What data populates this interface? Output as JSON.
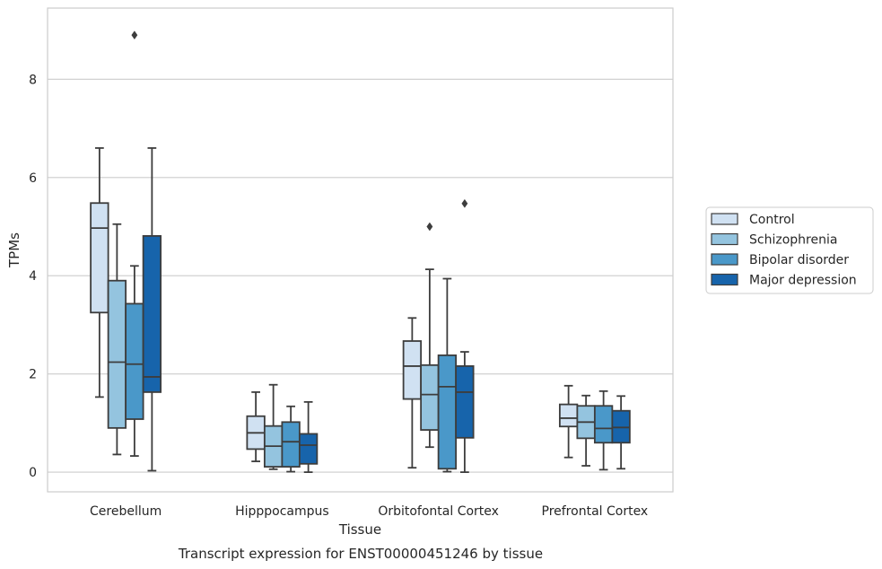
{
  "chart_data": {
    "type": "box",
    "caption": "Transcript expression for ENST00000451246 by tissue",
    "xlabel": "Tissue",
    "ylabel": "TPMs",
    "ylim": [
      -0.4,
      9.45
    ],
    "yticks": [
      0,
      2,
      4,
      6,
      8
    ],
    "grid": "horizontal",
    "legend_placement": "right",
    "categories": [
      "Cerebellum",
      "Hipppocampus",
      "Orbitofontal Cortex",
      "Prefrontal Cortex"
    ],
    "series": [
      {
        "name": "Control",
        "color": "#d0e1f2",
        "boxes": [
          {
            "whislo": 1.53,
            "q1": 3.25,
            "med": 4.97,
            "q3": 5.48,
            "whishi": 6.6,
            "fliers": []
          },
          {
            "whislo": 0.22,
            "q1": 0.47,
            "med": 0.8,
            "q3": 1.14,
            "whishi": 1.63,
            "fliers": []
          },
          {
            "whislo": 0.09,
            "q1": 1.49,
            "med": 2.16,
            "q3": 2.67,
            "whishi": 3.14,
            "fliers": []
          },
          {
            "whislo": 0.3,
            "q1": 0.93,
            "med": 1.1,
            "q3": 1.38,
            "whishi": 1.76,
            "fliers": []
          }
        ]
      },
      {
        "name": "Schizophrenia",
        "color": "#94c4df",
        "boxes": [
          {
            "whislo": 0.36,
            "q1": 0.9,
            "med": 2.24,
            "q3": 3.9,
            "whishi": 5.05,
            "fliers": []
          },
          {
            "whislo": 0.06,
            "q1": 0.11,
            "med": 0.53,
            "q3": 0.94,
            "whishi": 1.78,
            "fliers": []
          },
          {
            "whislo": 0.51,
            "q1": 0.86,
            "med": 1.58,
            "q3": 2.18,
            "whishi": 4.13,
            "fliers": [
              5.0
            ]
          },
          {
            "whislo": 0.13,
            "q1": 0.69,
            "med": 1.02,
            "q3": 1.35,
            "whishi": 1.56,
            "fliers": []
          }
        ]
      },
      {
        "name": "Bipolar disorder",
        "color": "#4a98c9",
        "boxes": [
          {
            "whislo": 0.33,
            "q1": 1.08,
            "med": 2.2,
            "q3": 3.43,
            "whishi": 4.2,
            "fliers": [
              8.9
            ]
          },
          {
            "whislo": 0.01,
            "q1": 0.11,
            "med": 0.62,
            "q3": 1.02,
            "whishi": 1.34,
            "fliers": []
          },
          {
            "whislo": 0.01,
            "q1": 0.07,
            "med": 1.74,
            "q3": 2.38,
            "whishi": 3.94,
            "fliers": []
          },
          {
            "whislo": 0.05,
            "q1": 0.6,
            "med": 0.89,
            "q3": 1.35,
            "whishi": 1.65,
            "fliers": []
          }
        ]
      },
      {
        "name": "Major depression",
        "color": "#1764ab",
        "boxes": [
          {
            "whislo": 0.03,
            "q1": 1.63,
            "med": 1.94,
            "q3": 4.81,
            "whishi": 6.6,
            "fliers": []
          },
          {
            "whislo": 0.0,
            "q1": 0.17,
            "med": 0.55,
            "q3": 0.78,
            "whishi": 1.43,
            "fliers": []
          },
          {
            "whislo": 0.0,
            "q1": 0.7,
            "med": 1.63,
            "q3": 2.16,
            "whishi": 2.45,
            "fliers": [
              5.47
            ]
          },
          {
            "whislo": 0.07,
            "q1": 0.6,
            "med": 0.91,
            "q3": 1.25,
            "whishi": 1.55,
            "fliers": []
          }
        ]
      }
    ]
  }
}
